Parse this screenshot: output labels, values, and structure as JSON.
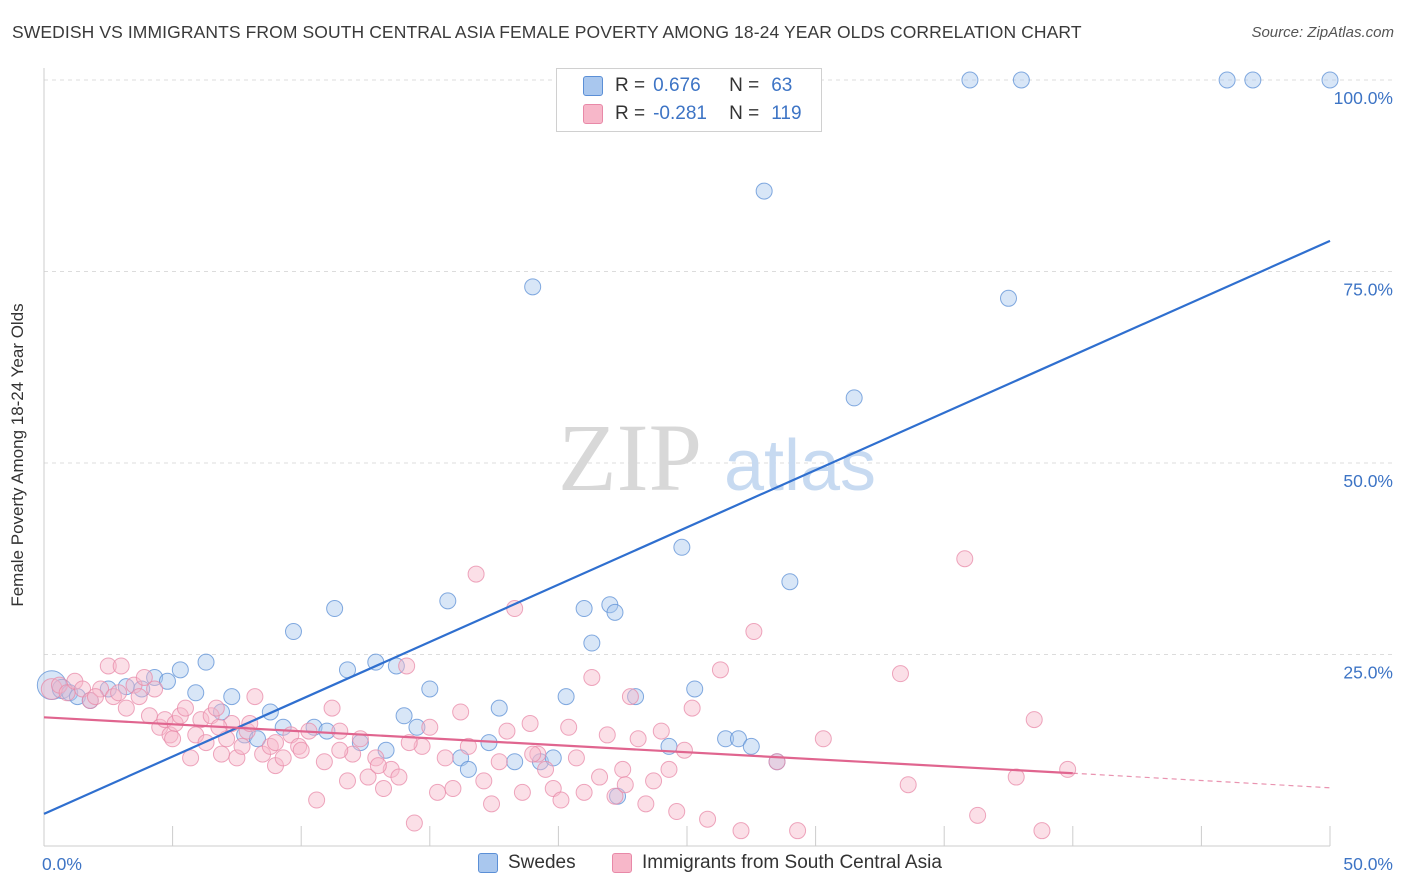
{
  "title": "SWEDISH VS IMMIGRANTS FROM SOUTH CENTRAL ASIA FEMALE POVERTY AMONG 18-24 YEAR OLDS CORRELATION CHART",
  "source": "Source: ZipAtlas.com",
  "watermark": {
    "zip": "ZIP",
    "atlas": "atlas"
  },
  "stats": [
    {
      "r_label": "R =",
      "r_value": "0.676",
      "n_label": "N =",
      "n_value": "63",
      "color": "#a9c7ee"
    },
    {
      "r_label": "R =",
      "r_value": "-0.281",
      "n_label": "N =",
      "n_value": "119",
      "color": "#f7b7c9"
    }
  ],
  "legend": [
    {
      "label": "Swedes",
      "color": "#a9c7ee"
    },
    {
      "label": "Immigrants from South Central Asia",
      "color": "#f7b7c9"
    }
  ],
  "chart_data": {
    "type": "scatter",
    "ylabel": "Female Poverty Among 18-24 Year Olds",
    "xlabel": "",
    "xlim": [
      0,
      50
    ],
    "ylim": [
      0,
      100
    ],
    "x_tick_labels": [
      {
        "value": 0,
        "label": "0.0%"
      },
      {
        "value": 50,
        "label": "50.0%"
      }
    ],
    "y_tick_labels": [
      {
        "value": 25,
        "label": "25.0%"
      },
      {
        "value": 50,
        "label": "50.0%"
      },
      {
        "value": 75,
        "label": "75.0%"
      },
      {
        "value": 100,
        "label": "100.0%"
      }
    ],
    "grid": true,
    "legend_position": "bottom",
    "series": [
      {
        "name": "Swedes",
        "color": "#5b8fd6",
        "fill": "#a9c7ee",
        "trend": {
          "x": [
            0,
            50
          ],
          "y": [
            4.2,
            79.0
          ],
          "color": "#2f6fcf"
        },
        "points": [
          [
            0.3,
            21.0,
            1.8
          ],
          [
            0.7,
            20.5,
            1.2
          ],
          [
            1.0,
            20.0,
            1.0
          ],
          [
            1.3,
            19.5,
            1.0
          ],
          [
            1.8,
            19.0,
            1.0
          ],
          [
            2.5,
            20.5,
            1.0
          ],
          [
            3.2,
            20.8,
            1.0
          ],
          [
            3.8,
            20.5,
            1.0
          ],
          [
            4.3,
            22.0,
            1.0
          ],
          [
            4.8,
            21.5,
            1.0
          ],
          [
            5.3,
            23.0,
            1.0
          ],
          [
            5.9,
            20.0,
            1.0
          ],
          [
            6.3,
            24.0,
            1.0
          ],
          [
            6.9,
            17.5,
            1.0
          ],
          [
            7.3,
            19.5,
            1.0
          ],
          [
            7.8,
            14.5,
            1.0
          ],
          [
            8.3,
            14.0,
            1.0
          ],
          [
            8.8,
            17.5,
            1.0
          ],
          [
            9.3,
            15.5,
            1.0
          ],
          [
            9.7,
            28.0,
            1.0
          ],
          [
            10.5,
            15.5,
            1.0
          ],
          [
            11.0,
            15.0,
            1.0
          ],
          [
            11.3,
            31.0,
            1.0
          ],
          [
            11.8,
            23.0,
            1.0
          ],
          [
            12.3,
            13.5,
            1.0
          ],
          [
            12.9,
            24.0,
            1.0
          ],
          [
            13.3,
            12.5,
            1.0
          ],
          [
            13.7,
            23.5,
            1.0
          ],
          [
            14.0,
            17.0,
            1.0
          ],
          [
            14.5,
            15.5,
            1.0
          ],
          [
            15.0,
            20.5,
            1.0
          ],
          [
            15.7,
            32.0,
            1.0
          ],
          [
            16.2,
            11.5,
            1.0
          ],
          [
            16.5,
            10.0,
            1.0
          ],
          [
            17.3,
            13.5,
            1.0
          ],
          [
            17.7,
            18.0,
            1.0
          ],
          [
            18.3,
            11.0,
            1.0
          ],
          [
            19.0,
            73.0,
            1.0
          ],
          [
            19.3,
            11.0,
            1.0
          ],
          [
            19.8,
            11.5,
            1.0
          ],
          [
            20.3,
            19.5,
            1.0
          ],
          [
            21.0,
            31.0,
            1.0
          ],
          [
            21.3,
            26.5,
            1.0
          ],
          [
            22.0,
            31.5,
            1.0
          ],
          [
            22.2,
            30.5,
            1.0
          ],
          [
            22.3,
            6.5,
            1.0
          ],
          [
            23.0,
            19.5,
            1.0
          ],
          [
            24.3,
            13.0,
            1.0
          ],
          [
            24.8,
            39.0,
            1.0
          ],
          [
            25.3,
            20.5,
            1.0
          ],
          [
            26.5,
            14.0,
            1.0
          ],
          [
            27.0,
            14.0,
            1.0
          ],
          [
            27.5,
            13.0,
            1.0
          ],
          [
            28.0,
            85.5,
            1.0
          ],
          [
            28.5,
            11.0,
            1.0
          ],
          [
            29.0,
            34.5,
            1.0
          ],
          [
            31.5,
            58.5,
            1.0
          ],
          [
            36.0,
            100.0,
            1.0
          ],
          [
            37.5,
            71.5,
            1.0
          ],
          [
            38.0,
            100.0,
            1.0
          ],
          [
            46.0,
            100.0,
            1.0
          ],
          [
            47.0,
            100.0,
            1.0
          ],
          [
            50.0,
            100.0,
            1.0
          ]
        ]
      },
      {
        "name": "Immigrants from South Central Asia",
        "color": "#e889a8",
        "fill": "#f7b7c9",
        "trend": {
          "x": [
            0,
            40
          ],
          "y": [
            16.8,
            9.5
          ],
          "dash_x": [
            40,
            50
          ],
          "dash_y": [
            9.5,
            7.6
          ],
          "color": "#e0658f"
        },
        "points": [
          [
            0.3,
            20.5,
            1.3
          ],
          [
            0.6,
            21.0,
            1.0
          ],
          [
            0.9,
            20.0,
            1.0
          ],
          [
            1.2,
            21.5,
            1.0
          ],
          [
            1.5,
            20.5,
            1.0
          ],
          [
            1.8,
            19.0,
            1.0
          ],
          [
            2.2,
            20.5,
            1.0
          ],
          [
            2.5,
            23.5,
            1.0
          ],
          [
            2.7,
            19.5,
            1.0
          ],
          [
            2.9,
            20.0,
            1.0
          ],
          [
            3.0,
            23.5,
            1.0
          ],
          [
            3.2,
            18.0,
            1.0
          ],
          [
            3.5,
            21.0,
            1.0
          ],
          [
            3.7,
            19.5,
            1.0
          ],
          [
            3.9,
            22.0,
            1.0
          ],
          [
            4.1,
            17.0,
            1.0
          ],
          [
            4.3,
            20.5,
            1.0
          ],
          [
            4.5,
            15.5,
            1.0
          ],
          [
            4.7,
            16.5,
            1.0
          ],
          [
            4.9,
            14.5,
            1.0
          ],
          [
            5.1,
            16.0,
            1.0
          ],
          [
            5.3,
            17.0,
            1.0
          ],
          [
            5.5,
            18.0,
            1.0
          ],
          [
            5.7,
            11.5,
            1.0
          ],
          [
            5.9,
            14.5,
            1.0
          ],
          [
            6.1,
            16.5,
            1.0
          ],
          [
            6.3,
            13.5,
            1.0
          ],
          [
            6.5,
            17.0,
            1.0
          ],
          [
            6.7,
            18.0,
            1.0
          ],
          [
            6.9,
            12.0,
            1.0
          ],
          [
            7.1,
            14.0,
            1.0
          ],
          [
            7.3,
            16.0,
            1.0
          ],
          [
            7.5,
            11.5,
            1.0
          ],
          [
            7.7,
            13.0,
            1.0
          ],
          [
            7.9,
            15.0,
            1.0
          ],
          [
            8.2,
            19.5,
            1.0
          ],
          [
            8.5,
            12.0,
            1.0
          ],
          [
            8.8,
            13.0,
            1.0
          ],
          [
            9.0,
            10.5,
            1.0
          ],
          [
            9.3,
            11.5,
            1.0
          ],
          [
            9.6,
            14.5,
            1.0
          ],
          [
            9.9,
            13.0,
            1.0
          ],
          [
            10.3,
            15.0,
            1.0
          ],
          [
            10.6,
            6.0,
            1.0
          ],
          [
            10.9,
            11.0,
            1.0
          ],
          [
            11.2,
            18.0,
            1.0
          ],
          [
            11.5,
            15.0,
            1.0
          ],
          [
            11.8,
            8.5,
            1.0
          ],
          [
            12.0,
            12.0,
            1.0
          ],
          [
            12.3,
            14.0,
            1.0
          ],
          [
            12.6,
            9.0,
            1.0
          ],
          [
            12.9,
            11.5,
            1.0
          ],
          [
            13.2,
            7.5,
            1.0
          ],
          [
            13.5,
            10.0,
            1.0
          ],
          [
            13.8,
            9.0,
            1.0
          ],
          [
            14.1,
            23.5,
            1.0
          ],
          [
            14.4,
            3.0,
            1.0
          ],
          [
            14.7,
            13.0,
            1.0
          ],
          [
            15.0,
            15.5,
            1.0
          ],
          [
            15.3,
            7.0,
            1.0
          ],
          [
            15.6,
            11.5,
            1.0
          ],
          [
            15.9,
            7.5,
            1.0
          ],
          [
            16.2,
            17.5,
            1.0
          ],
          [
            16.5,
            13.0,
            1.0
          ],
          [
            16.8,
            35.5,
            1.0
          ],
          [
            17.1,
            8.5,
            1.0
          ],
          [
            17.4,
            5.5,
            1.0
          ],
          [
            17.7,
            11.0,
            1.0
          ],
          [
            18.0,
            15.0,
            1.0
          ],
          [
            18.3,
            31.0,
            1.0
          ],
          [
            18.6,
            7.0,
            1.0
          ],
          [
            18.9,
            16.0,
            1.0
          ],
          [
            19.2,
            12.0,
            1.0
          ],
          [
            19.5,
            10.0,
            1.0
          ],
          [
            19.8,
            7.5,
            1.0
          ],
          [
            20.1,
            6.0,
            1.0
          ],
          [
            20.4,
            15.5,
            1.0
          ],
          [
            20.7,
            11.5,
            1.0
          ],
          [
            21.0,
            7.0,
            1.0
          ],
          [
            21.3,
            22.0,
            1.0
          ],
          [
            21.6,
            9.0,
            1.0
          ],
          [
            21.9,
            14.5,
            1.0
          ],
          [
            22.2,
            6.5,
            1.0
          ],
          [
            22.5,
            10.0,
            1.0
          ],
          [
            22.8,
            19.5,
            1.0
          ],
          [
            23.1,
            14.0,
            1.0
          ],
          [
            23.4,
            5.5,
            1.0
          ],
          [
            23.7,
            8.5,
            1.0
          ],
          [
            24.0,
            15.0,
            1.0
          ],
          [
            24.3,
            10.0,
            1.0
          ],
          [
            24.6,
            4.5,
            1.0
          ],
          [
            24.9,
            12.5,
            1.0
          ],
          [
            25.2,
            18.0,
            1.0
          ],
          [
            25.8,
            3.5,
            1.0
          ],
          [
            26.3,
            23.0,
            1.0
          ],
          [
            27.1,
            2.0,
            1.0
          ],
          [
            27.6,
            28.0,
            1.0
          ],
          [
            28.5,
            11.0,
            1.0
          ],
          [
            29.3,
            2.0,
            1.0
          ],
          [
            30.3,
            14.0,
            1.0
          ],
          [
            33.3,
            22.5,
            1.0
          ],
          [
            33.6,
            8.0,
            1.0
          ],
          [
            35.8,
            37.5,
            1.0
          ],
          [
            36.3,
            4.0,
            1.0
          ],
          [
            37.8,
            9.0,
            1.0
          ],
          [
            38.5,
            16.5,
            1.0
          ],
          [
            38.8,
            2.0,
            1.0
          ],
          [
            39.8,
            10.0,
            1.0
          ],
          [
            9.0,
            13.5,
            1.0
          ],
          [
            5.0,
            14.0,
            1.0
          ],
          [
            10.0,
            12.5,
            1.0
          ],
          [
            13.0,
            10.5,
            1.0
          ],
          [
            6.8,
            15.5,
            1.0
          ],
          [
            11.5,
            12.5,
            1.0
          ],
          [
            8.0,
            16.0,
            1.0
          ],
          [
            14.2,
            13.5,
            1.0
          ],
          [
            19.0,
            12.0,
            1.0
          ],
          [
            22.6,
            8.0,
            1.0
          ],
          [
            2.0,
            19.5,
            1.0
          ]
        ]
      }
    ]
  }
}
